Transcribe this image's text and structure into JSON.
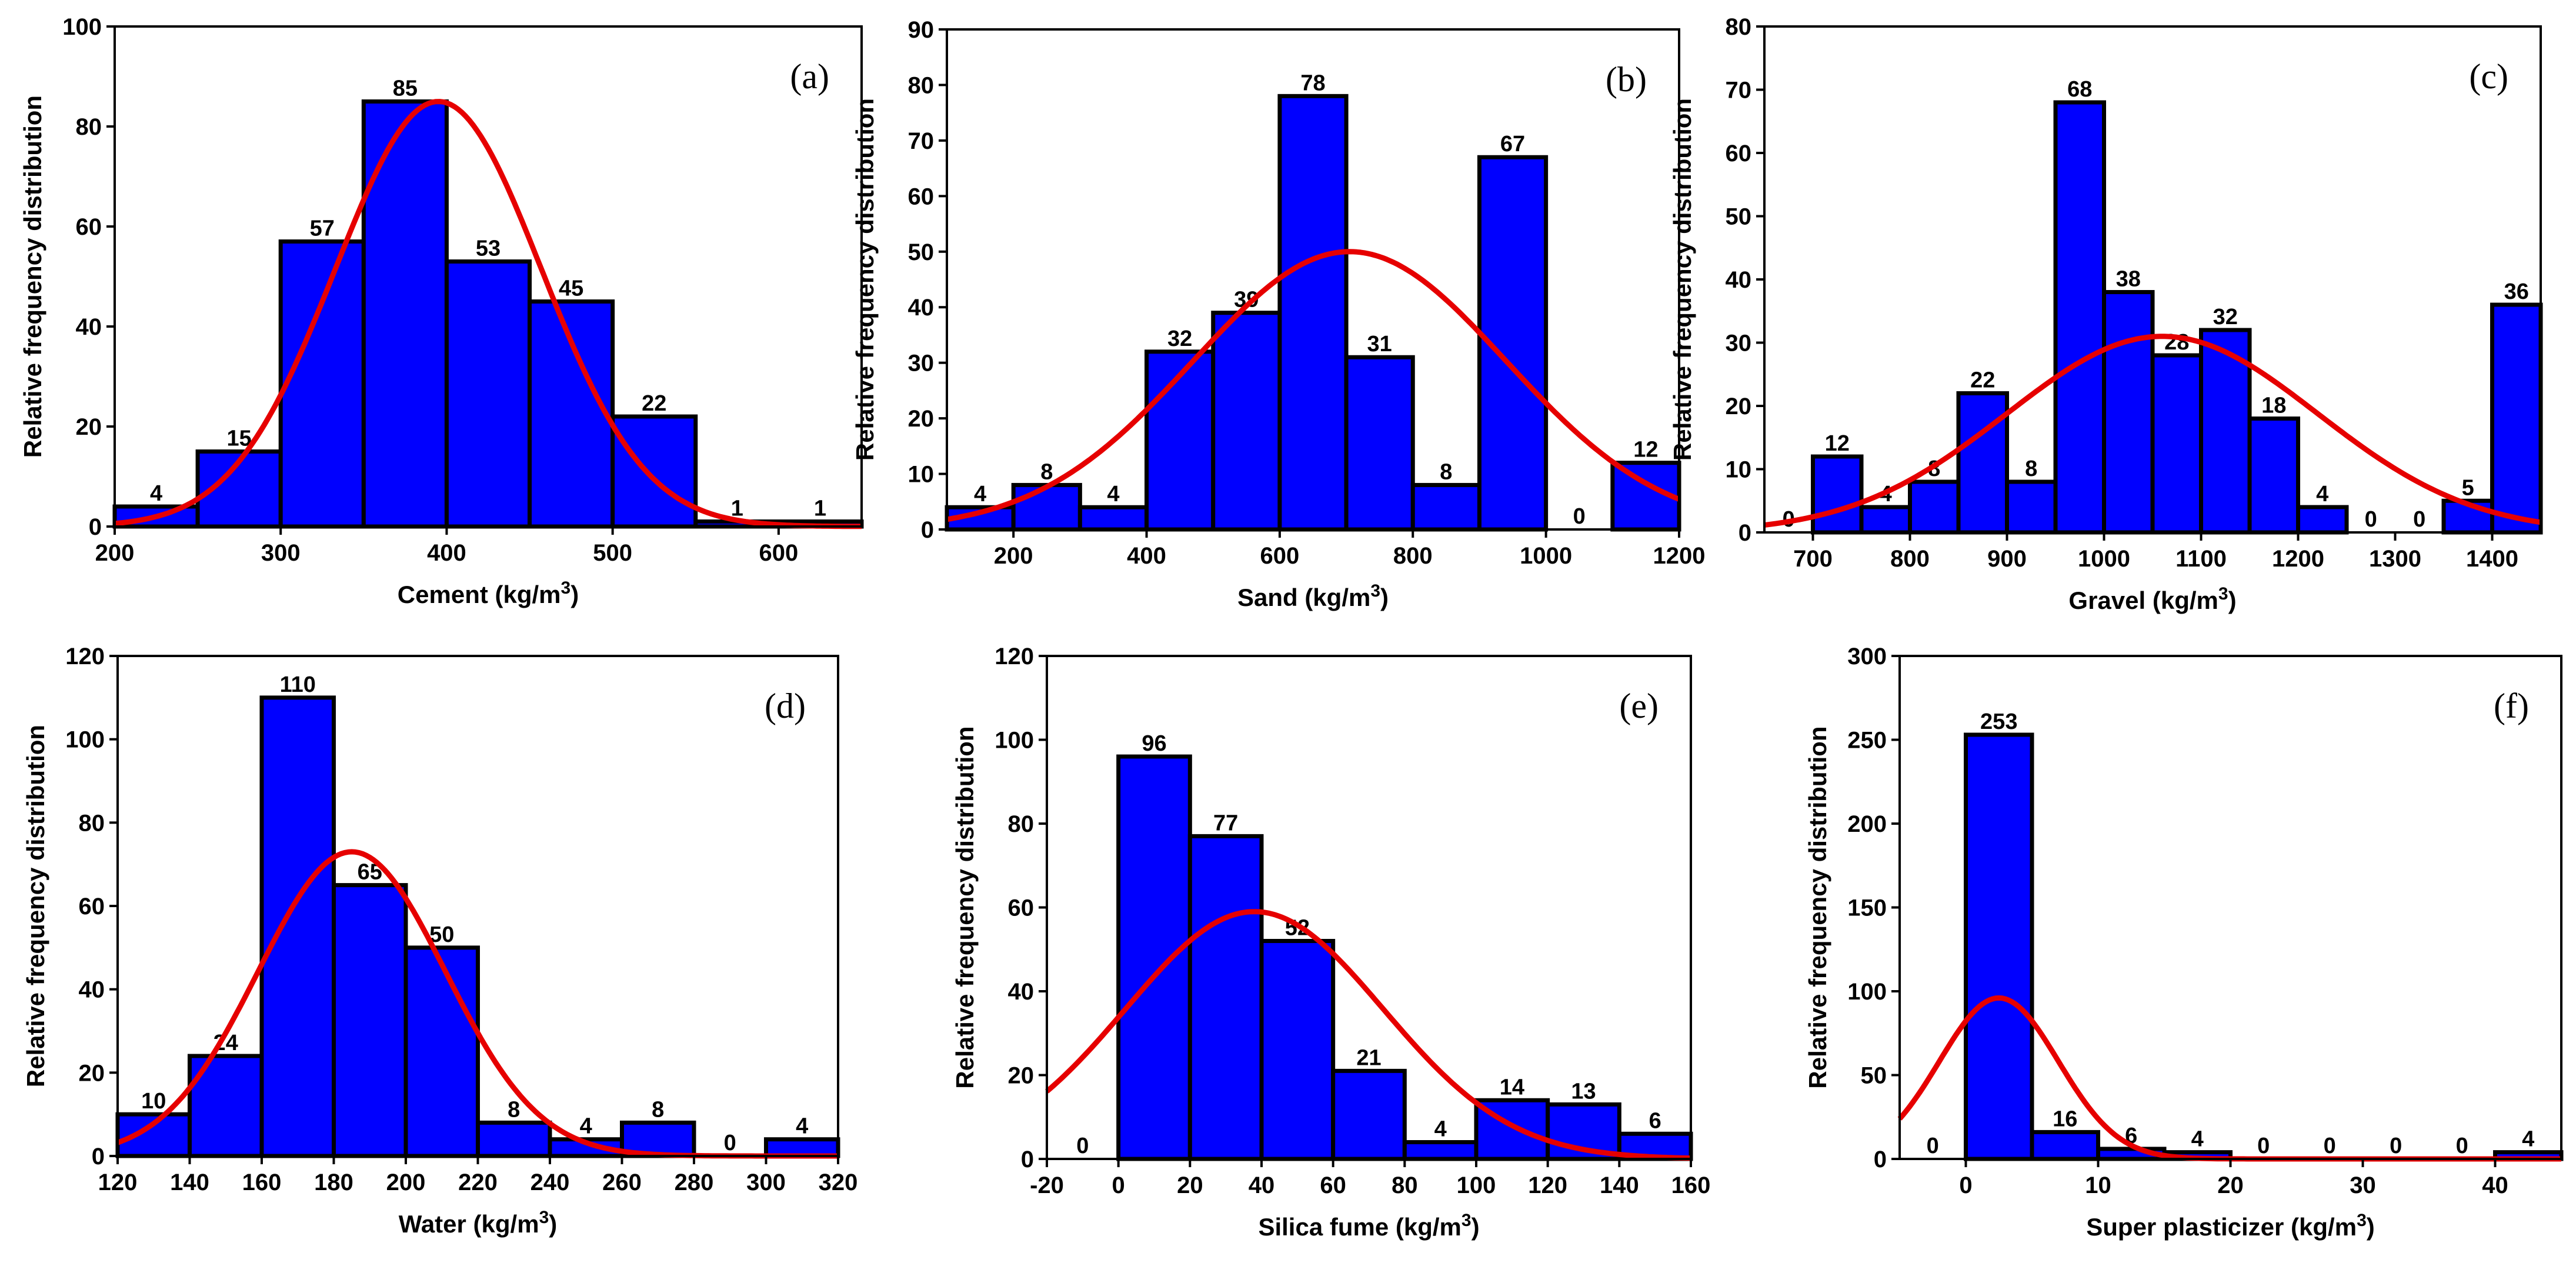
{
  "colors": {
    "bar": "#0000ff",
    "curve": "#e60000",
    "edge": "#000000"
  },
  "ylabel": "Relative frequency distribution",
  "chart_data": [
    {
      "type": "bar",
      "panel": "(a)",
      "xlabel": "Cement (kg/m",
      "xlabel_unit_sup": "3",
      "xlabel_close": ")",
      "xlim": [
        200,
        650
      ],
      "ylim": [
        0,
        100
      ],
      "xticks": [
        200,
        300,
        400,
        500,
        600
      ],
      "yticks": [
        0,
        20,
        40,
        60,
        80,
        100
      ],
      "bins": [
        [
          200,
          250
        ],
        [
          250,
          300
        ],
        [
          300,
          350
        ],
        [
          350,
          400
        ],
        [
          400,
          450
        ],
        [
          450,
          500
        ],
        [
          500,
          550
        ],
        [
          550,
          600
        ],
        [
          600,
          650
        ]
      ],
      "values": [
        4,
        15,
        57,
        85,
        53,
        45,
        22,
        1,
        1
      ],
      "fit": {
        "type": "normal",
        "mean": 395,
        "sd": 62,
        "peak": 85
      }
    },
    {
      "type": "bar",
      "panel": "(b)",
      "xlabel": "Sand (kg/m",
      "xlabel_unit_sup": "3",
      "xlabel_close": ")",
      "xlim": [
        100,
        1200
      ],
      "ylim": [
        0,
        90
      ],
      "xticks": [
        200,
        400,
        600,
        800,
        1000,
        1200
      ],
      "yticks": [
        0,
        10,
        20,
        30,
        40,
        50,
        60,
        70,
        80,
        90
      ],
      "bins": [
        [
          100,
          200
        ],
        [
          200,
          300
        ],
        [
          300,
          400
        ],
        [
          400,
          500
        ],
        [
          500,
          600
        ],
        [
          600,
          700
        ],
        [
          700,
          800
        ],
        [
          800,
          900
        ],
        [
          900,
          1000
        ],
        [
          1000,
          1100
        ],
        [
          1100,
          1200
        ]
      ],
      "values": [
        4,
        8,
        4,
        32,
        39,
        78,
        31,
        8,
        67,
        0,
        12
      ],
      "fit": {
        "type": "normal",
        "mean": 705,
        "sd": 235,
        "peak": 50
      }
    },
    {
      "type": "bar",
      "panel": "(c)",
      "xlabel": "Gravel (kg/m",
      "xlabel_unit_sup": "3",
      "xlabel_close": ")",
      "xlim": [
        650,
        1450
      ],
      "ylim": [
        0,
        80
      ],
      "xticks": [
        700,
        800,
        900,
        1000,
        1100,
        1200,
        1300,
        1400
      ],
      "yticks": [
        0,
        10,
        20,
        30,
        40,
        50,
        60,
        70,
        80
      ],
      "bins": [
        [
          650,
          700
        ],
        [
          700,
          750
        ],
        [
          750,
          800
        ],
        [
          800,
          850
        ],
        [
          850,
          900
        ],
        [
          900,
          950
        ],
        [
          950,
          1000
        ],
        [
          1000,
          1050
        ],
        [
          1050,
          1100
        ],
        [
          1100,
          1150
        ],
        [
          1150,
          1200
        ],
        [
          1200,
          1250
        ],
        [
          1250,
          1300
        ],
        [
          1300,
          1350
        ],
        [
          1350,
          1400
        ],
        [
          1400,
          1450
        ]
      ],
      "values": [
        0,
        12,
        4,
        8,
        22,
        8,
        68,
        38,
        28,
        32,
        18,
        4,
        0,
        0,
        5,
        36
      ],
      "fit": {
        "type": "normal",
        "mean": 1060,
        "sd": 160,
        "peak": 31
      }
    },
    {
      "type": "bar",
      "panel": "(d)",
      "xlabel": "Water (kg/m",
      "xlabel_unit_sup": "3",
      "xlabel_close": ")",
      "xlim": [
        120,
        320
      ],
      "ylim": [
        0,
        120
      ],
      "xticks": [
        120,
        140,
        160,
        180,
        200,
        220,
        240,
        260,
        280,
        300,
        320
      ],
      "yticks": [
        0,
        20,
        40,
        60,
        80,
        100,
        120
      ],
      "bins": [
        [
          120,
          140
        ],
        [
          140,
          160
        ],
        [
          160,
          180
        ],
        [
          180,
          200
        ],
        [
          200,
          220
        ],
        [
          220,
          240
        ],
        [
          240,
          260
        ],
        [
          260,
          280
        ],
        [
          280,
          300
        ],
        [
          300,
          320
        ]
      ],
      "values": [
        10,
        24,
        110,
        65,
        50,
        8,
        4,
        8,
        0,
        4
      ],
      "fit": {
        "type": "normal",
        "mean": 185,
        "sd": 26,
        "peak": 73
      }
    },
    {
      "type": "bar",
      "panel": "(e)",
      "xlabel": "Silica fume (kg/m",
      "xlabel_unit_sup": "3",
      "xlabel_close": ")",
      "xlim": [
        -20,
        160
      ],
      "ylim": [
        0,
        120
      ],
      "xticks": [
        -20,
        0,
        20,
        40,
        60,
        80,
        100,
        120,
        140,
        160
      ],
      "yticks": [
        0,
        20,
        40,
        60,
        80,
        100,
        120
      ],
      "bins": [
        [
          -20,
          0
        ],
        [
          0,
          20
        ],
        [
          20,
          40
        ],
        [
          40,
          60
        ],
        [
          60,
          80
        ],
        [
          80,
          100
        ],
        [
          100,
          120
        ],
        [
          120,
          140
        ],
        [
          140,
          160
        ]
      ],
      "values": [
        0,
        96,
        77,
        52,
        21,
        4,
        14,
        13,
        6
      ],
      "fit": {
        "type": "normal",
        "mean": 38,
        "sd": 36,
        "peak": 59
      }
    },
    {
      "type": "bar",
      "panel": "(f)",
      "xlabel": "Super plasticizer (kg/m",
      "xlabel_unit_sup": "3",
      "xlabel_close": ")",
      "xlim": [
        -5,
        45
      ],
      "ylim": [
        0,
        300
      ],
      "xticks": [
        0,
        10,
        20,
        30,
        40
      ],
      "yticks": [
        0,
        50,
        100,
        150,
        200,
        250,
        300
      ],
      "bins": [
        [
          -5,
          0
        ],
        [
          0,
          5
        ],
        [
          5,
          10
        ],
        [
          10,
          15
        ],
        [
          15,
          20
        ],
        [
          20,
          25
        ],
        [
          25,
          30
        ],
        [
          30,
          35
        ],
        [
          35,
          40
        ],
        [
          40,
          45
        ]
      ],
      "values": [
        0,
        253,
        16,
        6,
        4,
        0,
        0,
        0,
        0,
        4
      ],
      "fit": {
        "type": "normal",
        "mean": 2.5,
        "sd": 4.5,
        "peak": 96
      }
    }
  ]
}
